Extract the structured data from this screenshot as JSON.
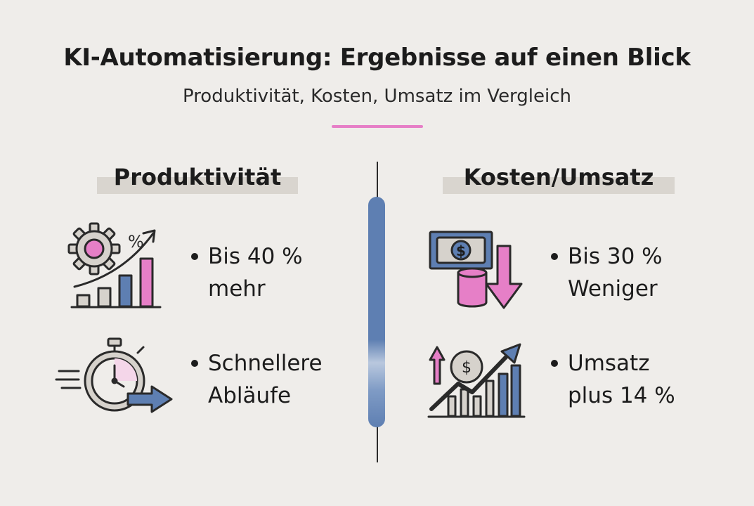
{
  "header": {
    "title": "KI-Automatisierung: Ergebnisse auf einen Blick",
    "subtitle": "Produktivität, Kosten, Umsatz im Vergleich"
  },
  "left": {
    "heading": "Produktivität",
    "items": [
      {
        "icon": "gear-growth-chart-icon",
        "lines": [
          "Bis 40 %",
          "mehr"
        ]
      },
      {
        "icon": "stopwatch-arrow-icon",
        "lines": [
          "Schnellere",
          "Abläufe"
        ]
      }
    ]
  },
  "right": {
    "heading": "Kosten/Umsatz",
    "items": [
      {
        "icon": "money-down-arrow-icon",
        "lines": [
          "Bis 30 %",
          "Weniger"
        ]
      },
      {
        "icon": "revenue-growth-icon",
        "lines": [
          "Umsatz",
          "plus 14 %"
        ]
      }
    ]
  },
  "icon_labels": {
    "percent": "%",
    "dollar": "$"
  },
  "colors": {
    "background": "#efedea",
    "accent_pink": "#e67fc7",
    "accent_blue": "#5e7fb2",
    "heading_bar": "#d9d5cf",
    "icon_gray": "#d6d2cc"
  }
}
